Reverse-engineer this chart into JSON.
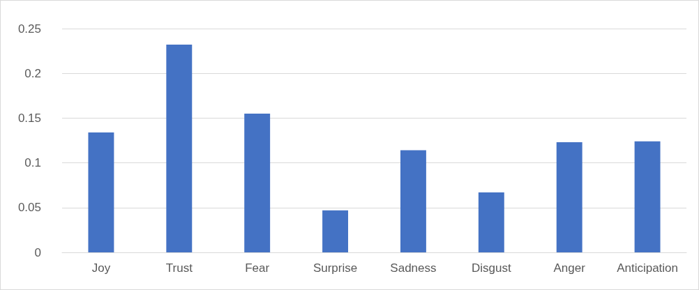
{
  "chart_data": {
    "type": "bar",
    "categories": [
      "Joy",
      "Trust",
      "Fear",
      "Surprise",
      "Sadness",
      "Disgust",
      "Anger",
      "Anticipation"
    ],
    "values": [
      0.134,
      0.232,
      0.155,
      0.047,
      0.114,
      0.067,
      0.123,
      0.124
    ],
    "color": "#4472c4",
    "ylim": [
      0,
      0.25
    ],
    "yticks": [
      0,
      0.05,
      0.1,
      0.15,
      0.2,
      0.25
    ],
    "grid": "y"
  }
}
